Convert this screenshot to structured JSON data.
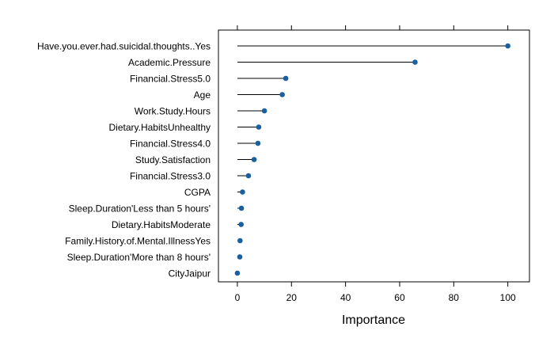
{
  "chart_data": {
    "type": "lollipop",
    "orientation": "horizontal",
    "title": "",
    "xlabel": "Importance",
    "ylabel": "",
    "xlim": [
      -7,
      108
    ],
    "x_ticks": [
      0,
      20,
      40,
      60,
      80,
      100
    ],
    "x_tick_labels": [
      "0",
      "20",
      "40",
      "60",
      "80",
      "100"
    ],
    "grid": false,
    "legend": "none",
    "colors": {
      "point": "#1a5f9e",
      "stem": "#000000",
      "frame": "#000000"
    },
    "categories": [
      "Have.you.ever.had.suicidal.thoughts..Yes",
      "Academic.Pressure",
      "Financial.Stress5.0",
      "Age",
      "Work.Study.Hours",
      "Dietary.HabitsUnhealthy",
      "Financial.Stress4.0",
      "Study.Satisfaction",
      "Financial.Stress3.0",
      "CGPA",
      "Sleep.Duration'Less than 5 hours'",
      "Dietary.HabitsModerate",
      "Family.History.of.Mental.IllnessYes",
      "Sleep.Duration'More than 8 hours'",
      "CityJaipur"
    ],
    "values": [
      100,
      65.7,
      17.9,
      16.6,
      10.0,
      7.9,
      7.6,
      6.2,
      4.1,
      1.9,
      1.5,
      1.4,
      1.0,
      0.9,
      0.0
    ]
  }
}
